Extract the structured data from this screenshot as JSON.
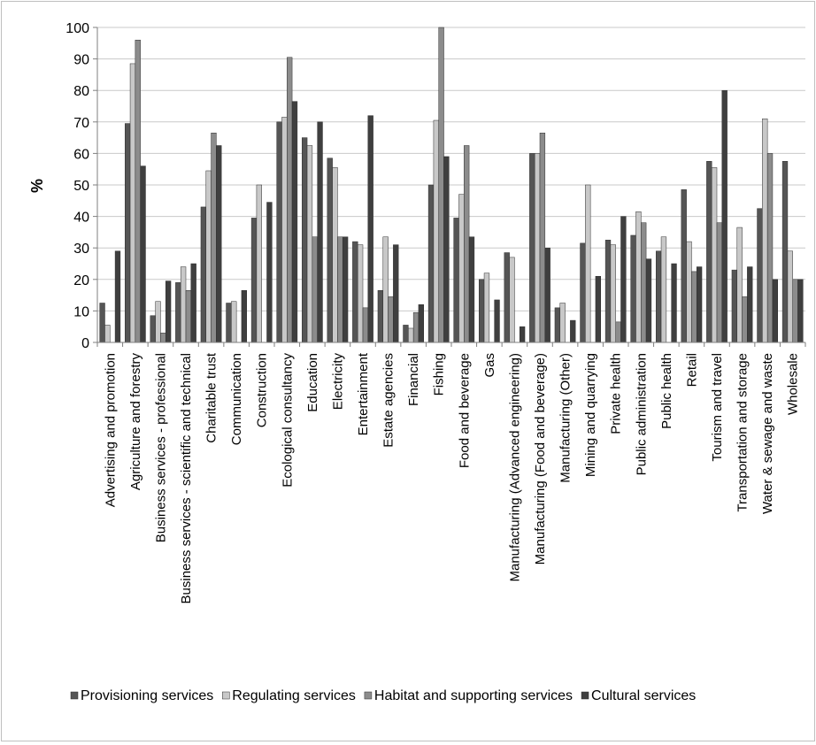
{
  "chart_data": {
    "type": "bar",
    "ylabel": "%",
    "ylim": [
      0,
      100
    ],
    "yticks": [
      0,
      10,
      20,
      30,
      40,
      50,
      60,
      70,
      80,
      90,
      100
    ],
    "grid": true,
    "legend_position": "bottom",
    "categories": [
      "Advertising and promotion",
      "Agriculture and forestry",
      "Business services - professional",
      "Business services - scientific and technical",
      "Charitable trust",
      "Communication",
      "Construction",
      "Ecological consultancy",
      "Education",
      "Electricity",
      "Entertainment",
      "Estate agencies",
      "Financial",
      "Fishing",
      "Food and beverage",
      "Gas",
      "Manufacturing (Advanced engineering)",
      "Manufacturing (Food and beverage)",
      "Manufacturing (Other)",
      "Mining and quarrying",
      "Private health",
      "Public administration",
      "Public health",
      "Retail",
      "Tourism and travel",
      "Transportation and storage",
      "Water & sewage and waste",
      "Wholesale"
    ],
    "series": [
      {
        "name": "Provisioning services",
        "color": "#555555",
        "values": [
          12.5,
          69.5,
          8.5,
          19,
          43,
          12.5,
          39.5,
          70,
          65,
          58.5,
          32,
          16.5,
          5.5,
          50,
          39.5,
          20,
          28.5,
          60,
          11,
          31.5,
          32.5,
          34,
          29,
          48.5,
          57.5,
          23,
          42.5,
          57.5
        ]
      },
      {
        "name": "Regulating services",
        "color": "#c8c8c8",
        "values": [
          5.5,
          88.5,
          13,
          24,
          54.5,
          13,
          50,
          71.5,
          62.5,
          55.5,
          31,
          33.5,
          4.5,
          70.5,
          47,
          22,
          27,
          60,
          12.5,
          50,
          31,
          41.5,
          33.5,
          32,
          55.5,
          36.5,
          71,
          29
        ]
      },
      {
        "name": "Habitat and supporting services",
        "color": "#8c8c8c",
        "values": [
          0,
          96,
          3,
          16.5,
          66.5,
          0,
          0,
          90.5,
          33.5,
          33.5,
          11,
          14.5,
          9.5,
          100,
          62.5,
          0,
          0,
          66.5,
          0,
          0,
          6.5,
          38,
          0,
          22.5,
          38,
          14.5,
          60,
          20
        ]
      },
      {
        "name": "Cultural services",
        "color": "#3f3f3f",
        "values": [
          29,
          56,
          19.5,
          25,
          62.5,
          16.5,
          44.5,
          76.5,
          70,
          33.5,
          72,
          31,
          12,
          59,
          33.5,
          13.5,
          5,
          30,
          7,
          21,
          40,
          26.5,
          25,
          24,
          80,
          24,
          20,
          20
        ]
      }
    ]
  }
}
